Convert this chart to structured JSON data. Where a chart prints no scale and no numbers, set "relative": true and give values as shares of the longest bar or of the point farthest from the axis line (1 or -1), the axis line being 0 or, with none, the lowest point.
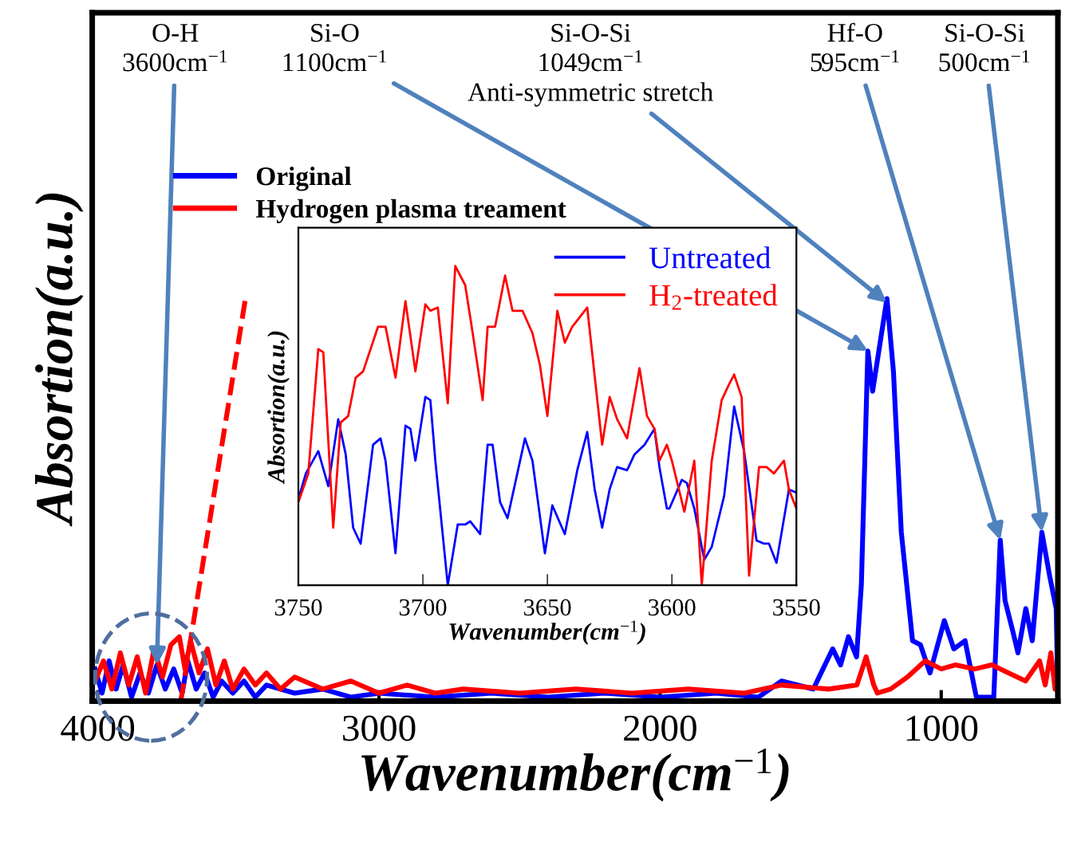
{
  "chart_data": [
    {
      "type": "line",
      "relative": true,
      "tick_labels": "x",
      "xlabel": "Wavenumber(cm$^{−1}$)",
      "ylabel": "Absortion(a.u.)",
      "xlim": [
        4020,
        585
      ],
      "xticks": [
        4000,
        3000,
        2000,
        1000
      ],
      "legend": "top left",
      "grid": false,
      "annotations": [
        {
          "text": "O-H\n3600cm$^{−1}$",
          "x": 3790,
          "y": 0.09
        },
        {
          "text": "Si-O\n1100cm$^{−1}$",
          "x": 1261,
          "y": 0.87
        },
        {
          "text": "Si-O-Si\n1049cm$^{−1}$\nAnti-symmetric stretch",
          "x": 1193,
          "y": 0.99
        },
        {
          "text": "Hf-O\n595cm$^{−1}$",
          "x": 790,
          "y": 0.4
        },
        {
          "text": "Si-O-Si\n500cm$^{−1}$",
          "x": 642,
          "y": 0.42
        }
      ],
      "series": [
        {
          "name": "Original",
          "color": "#0000ff",
          "x": [
            4010,
            3985,
            3960,
            3935,
            3910,
            3880,
            3850,
            3820,
            3790,
            3760,
            3730,
            3700,
            3680,
            3650,
            3620,
            3590,
            3560,
            3520,
            3480,
            3440,
            3400,
            3300,
            3200,
            3100,
            3000,
            2800,
            2600,
            2400,
            2200,
            2000,
            1800,
            1650,
            1568,
            1455,
            1386,
            1358,
            1330,
            1301,
            1284,
            1261,
            1244,
            1193,
            1170,
            1142,
            1102,
            1074,
            1040,
            989,
            955,
            915,
            898,
            875,
            813,
            790,
            773,
            744,
            727,
            699,
            676,
            642,
            614,
            591,
            585
          ],
          "values": [
            0.08,
            0.02,
            0.1,
            0.03,
            0.09,
            0.01,
            0.07,
            0.02,
            0.09,
            0.03,
            0.08,
            0.02,
            0.1,
            0.03,
            0.07,
            0.01,
            0.05,
            0.02,
            0.05,
            0.01,
            0.04,
            0.02,
            0.03,
            0.01,
            0.02,
            0.01,
            0.02,
            0.01,
            0.02,
            0.01,
            0.02,
            0.01,
            0.05,
            0.03,
            0.13,
            0.09,
            0.16,
            0.11,
            0.29,
            0.87,
            0.77,
            1.0,
            0.82,
            0.42,
            0.15,
            0.14,
            0.07,
            0.2,
            0.13,
            0.15,
            0.09,
            0.01,
            0.01,
            0.4,
            0.25,
            0.17,
            0.12,
            0.23,
            0.15,
            0.42,
            0.31,
            0.23,
            0.01
          ]
        },
        {
          "name": "Hydrogen plasma treament",
          "color": "#ff0000",
          "x": [
            4010,
            3980,
            3950,
            3920,
            3890,
            3860,
            3830,
            3800,
            3770,
            3740,
            3710,
            3690,
            3670,
            3640,
            3610,
            3580,
            3550,
            3520,
            3480,
            3440,
            3400,
            3350,
            3300,
            3200,
            3100,
            3000,
            2900,
            2800,
            2700,
            2500,
            2300,
            2100,
            1900,
            1700,
            1568,
            1400,
            1300,
            1267,
            1240,
            1227,
            1180,
            1120,
            1057,
            1000,
            950,
            880,
            820,
            760,
            700,
            650,
            630,
            610,
            595,
            585
          ],
          "values": [
            0.05,
            0.1,
            0.03,
            0.12,
            0.04,
            0.11,
            0.02,
            0.13,
            0.06,
            0.14,
            0.16,
            0.08,
            0.15,
            0.07,
            0.13,
            0.04,
            0.1,
            0.03,
            0.08,
            0.04,
            0.07,
            0.03,
            0.06,
            0.03,
            0.05,
            0.02,
            0.04,
            0.02,
            0.03,
            0.02,
            0.03,
            0.02,
            0.03,
            0.02,
            0.04,
            0.03,
            0.04,
            0.11,
            0.04,
            0.02,
            0.03,
            0.06,
            0.1,
            0.08,
            0.09,
            0.08,
            0.09,
            0.07,
            0.05,
            0.1,
            0.04,
            0.12,
            0.03,
            0.06
          ]
        },
        {
          "color": "#ff0000",
          "line_style": "dashed",
          "x": [
            3705,
            3475
          ],
          "values": [
            0,
            1.0
          ]
        }
      ]
    },
    {
      "type": "line",
      "relative": true,
      "tick_labels": "x",
      "xlabel": "Wavenumber(cm$^{−1}$)",
      "ylabel": "Absortion(a.u.)",
      "xlim": [
        3750,
        3550
      ],
      "xticks": [
        3750,
        3700,
        3650,
        3600,
        3550
      ],
      "legend": "top right",
      "grid": false,
      "series": [
        {
          "name": "Untreated",
          "color": "#0000ff",
          "x": [
            3750,
            3747,
            3742,
            3738,
            3734,
            3731,
            3728,
            3725,
            3720,
            3717,
            3715,
            3711,
            3707,
            3705,
            3703,
            3699,
            3697,
            3695,
            3690,
            3686,
            3683,
            3681,
            3677,
            3674,
            3672,
            3669,
            3666,
            3659,
            3656,
            3651,
            3648,
            3643,
            3638,
            3634,
            3631,
            3628,
            3625,
            3622,
            3618,
            3615,
            3611,
            3607,
            3605,
            3602,
            3601,
            3596,
            3594,
            3591,
            3587,
            3584,
            3579,
            3575,
            3571,
            3566,
            3563,
            3561,
            3558,
            3553,
            3550
          ],
          "values": [
            0.27,
            0.35,
            0.42,
            0.31,
            0.52,
            0.41,
            0.18,
            0.13,
            0.44,
            0.46,
            0.39,
            0.1,
            0.5,
            0.49,
            0.39,
            0.59,
            0.58,
            0.39,
            0.0,
            0.19,
            0.19,
            0.2,
            0.16,
            0.44,
            0.44,
            0.26,
            0.21,
            0.46,
            0.39,
            0.1,
            0.25,
            0.16,
            0.36,
            0.48,
            0.3,
            0.18,
            0.3,
            0.37,
            0.36,
            0.41,
            0.44,
            0.49,
            0.37,
            0.24,
            0.24,
            0.33,
            0.32,
            0.24,
            0.08,
            0.12,
            0.28,
            0.56,
            0.42,
            0.14,
            0.13,
            0.13,
            0.07,
            0.3,
            0.29
          ]
        },
        {
          "name": "H$_{2}$-treated",
          "color": "#ff0000",
          "x": [
            3750,
            3746,
            3742,
            3740,
            3736,
            3733,
            3730,
            3727,
            3724,
            3718,
            3715,
            3711,
            3707,
            3703,
            3699,
            3697,
            3694,
            3690,
            3687,
            3683,
            3680,
            3676,
            3674,
            3671,
            3667,
            3664,
            3660,
            3656,
            3653,
            3650,
            3646,
            3643,
            3640,
            3637,
            3634,
            3628,
            3625,
            3622,
            3618,
            3613,
            3610,
            3607,
            3605,
            3602,
            3600,
            3595,
            3591,
            3588,
            3584,
            3580,
            3577,
            3575,
            3572,
            3569,
            3565,
            3562,
            3559,
            3555,
            3553,
            3550
          ],
          "values": [
            0.26,
            0.35,
            0.74,
            0.73,
            0.18,
            0.51,
            0.53,
            0.65,
            0.67,
            0.81,
            0.81,
            0.65,
            0.89,
            0.67,
            0.88,
            0.86,
            0.87,
            0.57,
            1.0,
            0.94,
            0.79,
            0.58,
            0.81,
            0.81,
            0.97,
            0.86,
            0.86,
            0.79,
            0.69,
            0.53,
            0.86,
            0.76,
            0.81,
            0.84,
            0.87,
            0.44,
            0.59,
            0.52,
            0.46,
            0.68,
            0.53,
            0.49,
            0.39,
            0.44,
            0.39,
            0.23,
            0.39,
            0.0,
            0.39,
            0.58,
            0.63,
            0.66,
            0.59,
            0.03,
            0.37,
            0.37,
            0.35,
            0.39,
            0.3,
            0.24
          ]
        }
      ]
    }
  ]
}
